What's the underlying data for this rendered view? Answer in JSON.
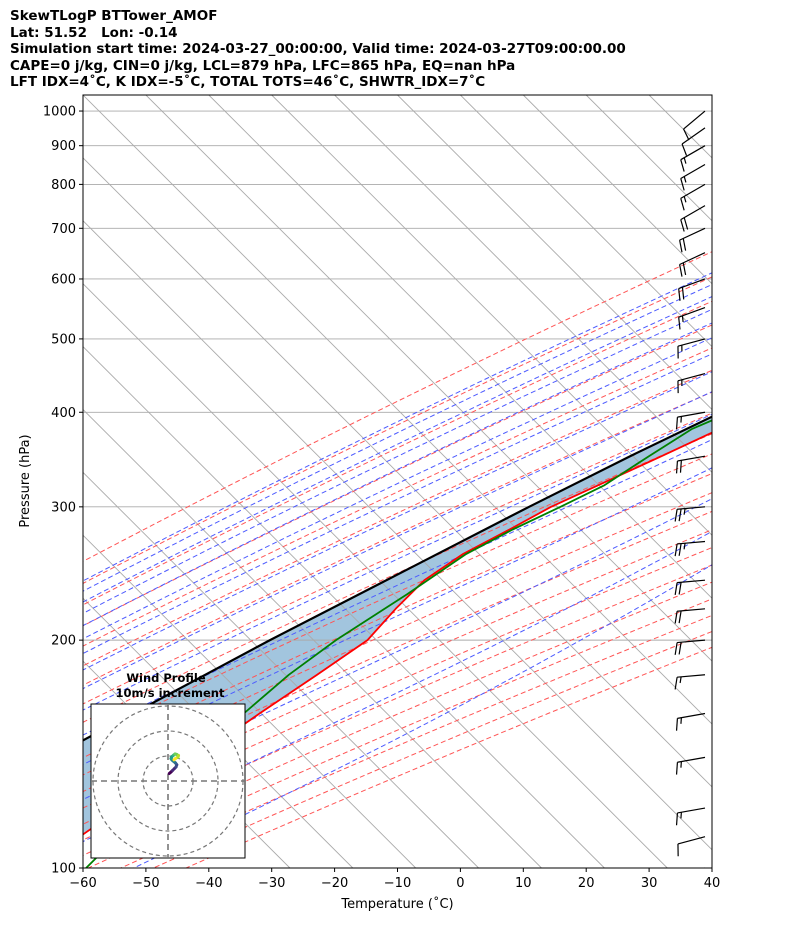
{
  "header": {
    "line1": "SkewTLogP BTTower_AMOF",
    "line2": "Lat: 51.52   Lon: -0.14",
    "line3": "Simulation start time: 2024-03-27_00:00:00, Valid time: 2024-03-27T09:00:00.00",
    "line4": "CAPE=0 j/kg, CIN=0 j/kg, LCL=879 hPa, LFC=865 hPa, EQ=nan hPa",
    "line5": "LFT IDX=4˚C, K IDX=-5˚C, TOTAL TOTS=46˚C, SHWTR_IDX=7˚C"
  },
  "chart_data": [
    {
      "type": "line",
      "subtype": "skew-T log-P",
      "xlabel": "Temperature (˚C)",
      "ylabel": "Pressure (hPa)",
      "xlim": [
        -60,
        40
      ],
      "ylim": [
        1050,
        100
      ],
      "y_scale": "log",
      "x_ticks": [
        "−60",
        "−50",
        "−40",
        "−30",
        "−20",
        "−10",
        "0",
        "10",
        "20",
        "30",
        "40"
      ],
      "y_ticks": [
        "100",
        "200",
        "300",
        "400",
        "500",
        "600",
        "700",
        "800",
        "900",
        "1000"
      ],
      "grid": true,
      "colors": {
        "temperature": "#ff0000",
        "dewpoint": "#008000",
        "parcel": "#000000",
        "fill": "#a2c5de",
        "dry_adiabats": "#ff5555",
        "moist_adiabats": "#4d5bff",
        "mixing_ratio": "#9c4bc8",
        "isotherms": "#aaaaaa"
      },
      "series": [
        {
          "key": "temperature",
          "p": [
            970,
            880,
            850,
            800,
            750,
            700,
            650,
            600,
            550,
            500,
            450,
            400,
            350,
            320,
            300,
            280,
            260,
            240,
            220,
            200,
            180,
            160,
            140,
            120,
            110,
            100
          ],
          "t": [
            11,
            5.6,
            5,
            2.5,
            0,
            -2.5,
            -5,
            -8,
            -11.5,
            -15.5,
            -20,
            -25.5,
            -33.5,
            -39,
            -43,
            -46,
            -49.5,
            -51.5,
            -51.5,
            -51,
            -53.5,
            -56.5,
            -59.5,
            -63.5,
            -65.5,
            -67
          ]
        },
        {
          "key": "dewpoint",
          "p": [
            970,
            940,
            920,
            900,
            880,
            860,
            840,
            800,
            750,
            700,
            650,
            600,
            550,
            500,
            450,
            400,
            380,
            350,
            320,
            300,
            280,
            260,
            230,
            200,
            180,
            160,
            140,
            120,
            110,
            100
          ],
          "t": [
            4.8,
            4.5,
            4,
            2,
            0,
            -1,
            -2.5,
            -10,
            -19,
            -25,
            -23,
            -14,
            -11.5,
            -15.5,
            -22.5,
            -29.5,
            -33,
            -35.5,
            -38,
            -41.5,
            -45.5,
            -49,
            -52,
            -56,
            -58,
            -59,
            -59.5,
            -59.5,
            -59.5,
            -59.5
          ]
        },
        {
          "key": "parcel",
          "p": [
            970,
            920,
            880,
            850,
            800,
            750,
            700,
            650,
            600,
            550,
            500,
            450,
            400,
            350,
            300,
            250,
            200,
            150,
            120,
            100
          ],
          "t": [
            11,
            6.5,
            5,
            4.7,
            2,
            -1,
            -4,
            -7.5,
            -11,
            -15,
            -19.5,
            -25,
            -31,
            -38.5,
            -46.5,
            -55.5,
            -66.5,
            -79.5,
            -89.5,
            -97
          ]
        }
      ],
      "wind_barbs": {
        "side": "right",
        "p": [
          1000,
          950,
          900,
          850,
          800,
          750,
          700,
          650,
          600,
          550,
          500,
          450,
          400,
          350,
          300,
          270,
          240,
          220,
          200,
          180,
          160,
          140,
          120,
          110,
          100
        ],
        "speed_kt": [
          10,
          10,
          15,
          15,
          15,
          20,
          20,
          20,
          20,
          15,
          15,
          15,
          15,
          20,
          25,
          25,
          20,
          20,
          20,
          15,
          15,
          15,
          15,
          10,
          10
        ],
        "dir_deg": [
          230,
          235,
          240,
          240,
          240,
          240,
          245,
          245,
          250,
          250,
          255,
          255,
          260,
          260,
          265,
          265,
          265,
          265,
          265,
          265,
          260,
          260,
          260,
          255,
          255
        ]
      }
    },
    {
      "type": "line",
      "subtype": "hodograph",
      "title": "Wind Profile",
      "subtitle": "10m/s increment",
      "rings": [
        10,
        20,
        30
      ],
      "u": [
        0.5,
        1.2,
        1.8,
        2.6,
        3.2,
        3.5,
        3.0,
        2.3,
        1.6,
        1.2,
        1.5,
        2.2,
        2.8,
        3.5,
        4.2,
        4.0,
        3.0,
        2.4
      ],
      "v": [
        3.0,
        3.6,
        4.2,
        5.0,
        5.6,
        6.5,
        7.2,
        7.8,
        8.4,
        9.0,
        9.7,
        10.3,
        10.8,
        10.6,
        10.2,
        9.6,
        9.0,
        8.5
      ]
    }
  ]
}
